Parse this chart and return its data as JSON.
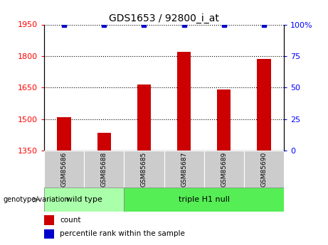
{
  "title": "GDS1653 / 92800_i_at",
  "samples": [
    "GSM85686",
    "GSM85688",
    "GSM85685",
    "GSM85687",
    "GSM85689",
    "GSM85690"
  ],
  "counts": [
    1510,
    1435,
    1665,
    1820,
    1640,
    1785
  ],
  "percentiles": [
    100,
    100,
    100,
    100,
    100,
    100
  ],
  "ylim_left": [
    1350,
    1950
  ],
  "ylim_right": [
    0,
    100
  ],
  "yticks_left": [
    1350,
    1500,
    1650,
    1800,
    1950
  ],
  "yticks_right": [
    0,
    25,
    50,
    75,
    100
  ],
  "ytick_right_labels": [
    "0",
    "25",
    "50",
    "75",
    "100%"
  ],
  "bar_color": "#cc0000",
  "dot_color": "#0000cc",
  "dot_marker": "s",
  "dot_size": 4,
  "groups": [
    {
      "label": "wild type",
      "n_samples": 2,
      "color": "#aaffaa"
    },
    {
      "label": "triple H1 null",
      "n_samples": 4,
      "color": "#55ee55"
    }
  ],
  "genotype_label": "genotype/variation",
  "legend_count_label": "count",
  "legend_percentile_label": "percentile rank within the sample",
  "sample_box_color": "#cccccc",
  "bar_width": 0.35
}
